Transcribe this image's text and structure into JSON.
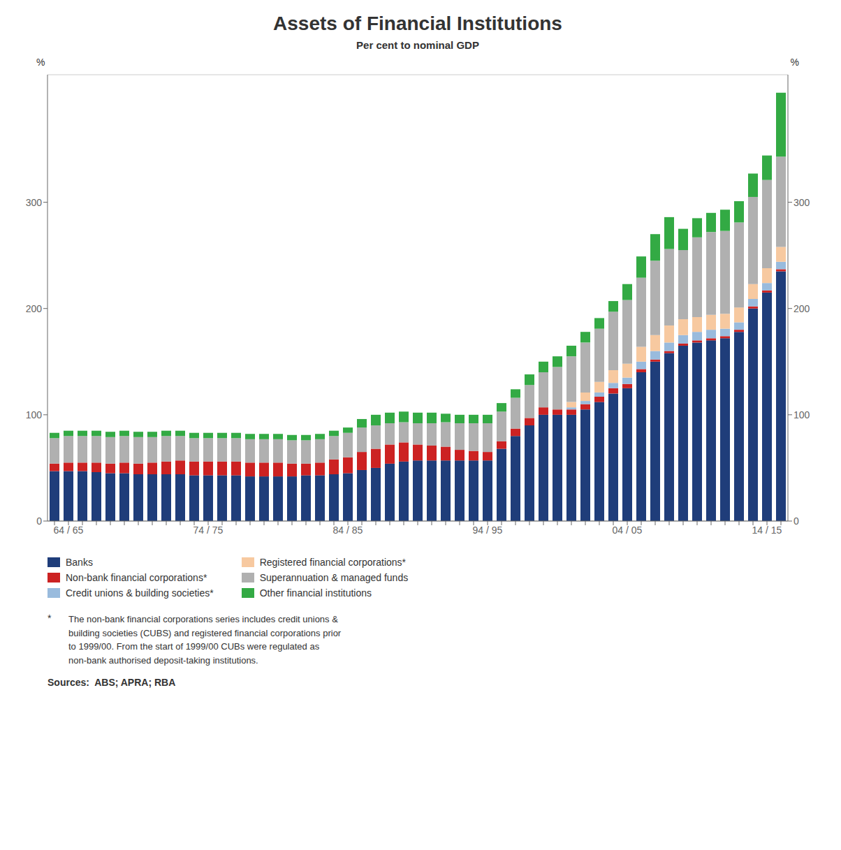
{
  "chart_data": {
    "type": "bar",
    "title": "Assets of Financial Institutions",
    "subtitle": "Per cent to nominal GDP",
    "ylabel": "%",
    "y2label": "%",
    "footnote_mark": "*",
    "footnote": "The non-bank financial corporations series includes credit unions &\nbuilding societies (CUBS) and registered financial corporations prior\nto 1999/00. From the start of 1999/00 CUBs were regulated as\nnon-bank authorised deposit-taking institutions.",
    "source": "Sources:  ABS; APRA; RBA",
    "stacked": true,
    "grid": true,
    "legend": "bottom",
    "categories": [
      null,
      "64 / 65",
      null,
      null,
      null,
      null,
      null,
      null,
      null,
      null,
      null,
      "74 / 75",
      null,
      null,
      null,
      null,
      null,
      null,
      null,
      null,
      null,
      "84 / 85",
      null,
      null,
      null,
      null,
      null,
      null,
      null,
      null,
      null,
      "94 / 95",
      null,
      null,
      null,
      null,
      null,
      null,
      null,
      null,
      null,
      "04 / 05",
      null,
      null,
      null,
      null,
      null,
      null,
      null,
      null,
      null,
      "14 / 15",
      null
    ],
    "ylim": [
      0,
      420
    ],
    "yticks": [
      0,
      100,
      200,
      300
    ],
    "y2lim": [
      0,
      420
    ],
    "y2ticks": [
      0,
      100,
      200,
      300
    ],
    "series": [
      {
        "name": "Banks",
        "color": "#1f3d7a",
        "values": [
          47,
          47,
          47,
          46,
          45,
          45,
          44,
          44,
          44,
          44,
          43,
          43,
          43,
          43,
          42,
          42,
          42,
          42,
          43,
          43,
          44,
          45,
          48,
          50,
          54,
          56,
          57,
          57,
          57,
          57,
          57,
          57,
          68,
          80,
          90,
          100,
          100,
          100,
          105,
          112,
          120,
          125,
          140,
          150,
          158,
          165,
          168,
          170,
          172,
          178,
          200,
          215,
          235
        ]
      },
      {
        "name": "Non-bank financial corporations*",
        "color": "#cc2222",
        "values": [
          7,
          8,
          8,
          9,
          9,
          10,
          10,
          11,
          12,
          13,
          13,
          13,
          13,
          13,
          13,
          13,
          13,
          12,
          11,
          12,
          14,
          15,
          17,
          18,
          18,
          18,
          15,
          14,
          13,
          10,
          9,
          8,
          7,
          7,
          7,
          7,
          5,
          5,
          5,
          5,
          5,
          4,
          3,
          2,
          2,
          2,
          2,
          2,
          2,
          2,
          2,
          2,
          2
        ]
      },
      {
        "name": "Credit unions & building societies*",
        "color": "#99bbdd",
        "values": [
          0,
          0,
          0,
          0,
          0,
          0,
          0,
          0,
          0,
          0,
          0,
          0,
          0,
          0,
          0,
          0,
          0,
          0,
          0,
          0,
          0,
          0,
          0,
          0,
          0,
          0,
          0,
          0,
          0,
          0,
          0,
          0,
          0,
          0,
          0,
          0,
          0,
          2,
          3,
          4,
          5,
          6,
          7,
          8,
          8,
          8,
          8,
          8,
          7,
          7,
          7,
          7,
          7
        ]
      },
      {
        "name": "Registered financial corporations*",
        "color": "#f7c9a0",
        "values": [
          0,
          0,
          0,
          0,
          0,
          0,
          0,
          0,
          0,
          0,
          0,
          0,
          0,
          0,
          0,
          0,
          0,
          0,
          0,
          0,
          0,
          0,
          0,
          0,
          0,
          0,
          0,
          0,
          0,
          0,
          0,
          0,
          0,
          0,
          0,
          0,
          0,
          5,
          8,
          10,
          12,
          13,
          14,
          15,
          16,
          15,
          14,
          14,
          14,
          14,
          14,
          14,
          14
        ]
      },
      {
        "name": "Superannuation & managed funds",
        "color": "#b0b0b0",
        "values": [
          24,
          25,
          25,
          25,
          25,
          25,
          25,
          24,
          24,
          23,
          22,
          22,
          22,
          22,
          22,
          22,
          22,
          22,
          22,
          22,
          22,
          23,
          23,
          22,
          20,
          19,
          20,
          21,
          23,
          25,
          26,
          27,
          28,
          29,
          31,
          33,
          40,
          43,
          47,
          50,
          55,
          60,
          65,
          70,
          72,
          65,
          75,
          78,
          78,
          80,
          82,
          83,
          85
        ]
      },
      {
        "name": "Other financial institutions",
        "color": "#33aa44",
        "values": [
          5,
          5,
          5,
          5,
          5,
          5,
          5,
          5,
          5,
          5,
          5,
          5,
          5,
          5,
          5,
          5,
          5,
          5,
          5,
          5,
          5,
          5,
          8,
          10,
          10,
          10,
          10,
          10,
          8,
          8,
          8,
          8,
          8,
          8,
          10,
          10,
          10,
          10,
          10,
          10,
          10,
          15,
          20,
          25,
          30,
          20,
          18,
          18,
          20,
          20,
          22,
          23,
          60
        ]
      }
    ]
  }
}
